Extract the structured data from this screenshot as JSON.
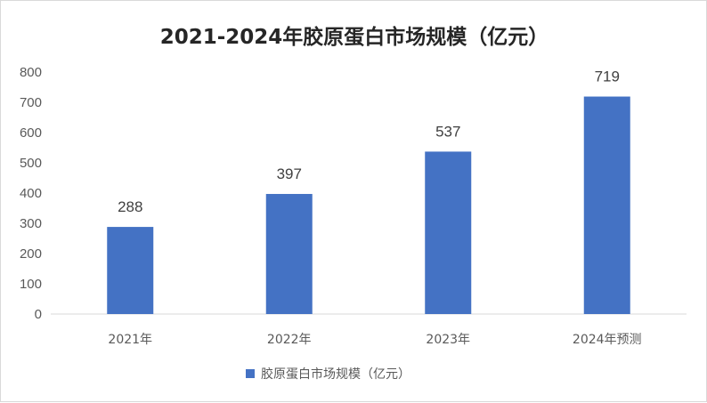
{
  "chart_data": {
    "type": "bar",
    "title": "2021-2024年胶原蛋白市场规模（亿元）",
    "categories": [
      "2021年",
      "2022年",
      "2023年",
      "2024年预测"
    ],
    "series": [
      {
        "name": "胶原蛋白市场规模（亿元）",
        "values": [
          288,
          397,
          537,
          719
        ]
      }
    ],
    "data_labels": [
      "288",
      "397",
      "537",
      "719"
    ],
    "yticks": [
      0,
      100,
      200,
      300,
      400,
      500,
      600,
      700,
      800
    ],
    "ylim": [
      0,
      800
    ],
    "grid": false,
    "legend_position": "bottom",
    "colors": {
      "bar": "#4472C4",
      "axis": "#d9d9d9",
      "text": "#595959"
    }
  }
}
